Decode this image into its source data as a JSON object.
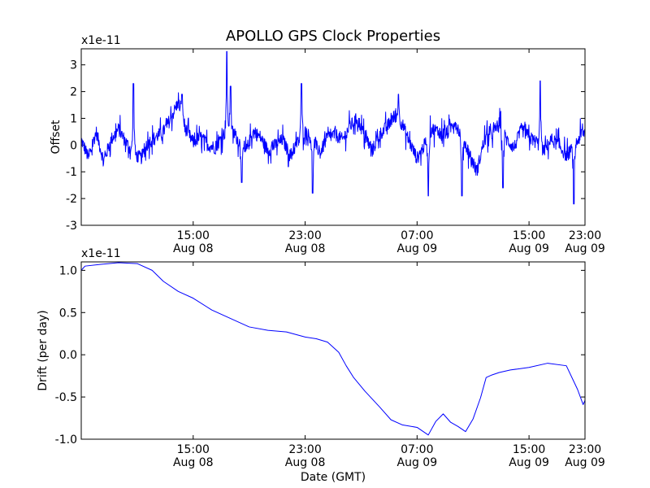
{
  "chart_data": [
    {
      "type": "line",
      "title": "APOLLO GPS Clock Properties",
      "ylabel": "Offset",
      "xlabel": "",
      "scale_label": "x1e-11",
      "x_range_hours": [
        12.0,
        25.5
      ],
      "ylim": [
        -3,
        3.6
      ],
      "yticks": [
        {
          "value": 3,
          "label": "3"
        },
        {
          "value": 2,
          "label": "2"
        },
        {
          "value": 1,
          "label": "1"
        },
        {
          "value": 0,
          "label": "0"
        },
        {
          "value": -1,
          "label": "-1"
        },
        {
          "value": -2,
          "label": "-2"
        },
        {
          "value": -3,
          "label": "-3"
        }
      ],
      "xticks": [
        {
          "hour": 15,
          "time": "15:00",
          "date": "Aug 08"
        },
        {
          "hour": 18,
          "time": "23:00",
          "date": "Aug 08"
        },
        {
          "hour": 21,
          "time": "07:00",
          "date": "Aug 09"
        },
        {
          "hour": 24,
          "time": "15:00",
          "date": "Aug 09"
        },
        {
          "hour": 25.5,
          "time": "23:00",
          "date": "Aug 09"
        }
      ],
      "series": [
        {
          "name": "offset",
          "color": "#0000ff",
          "noise_amplitude": 0.25,
          "x": [
            12.0,
            12.2,
            12.4,
            12.6,
            12.8,
            13.0,
            13.2,
            13.4,
            13.6,
            13.8,
            14.0,
            14.2,
            14.4,
            14.6,
            14.8,
            15.0,
            15.2,
            15.4,
            15.6,
            15.8,
            16.0,
            16.2,
            16.4,
            16.6,
            16.8,
            17.0,
            17.2,
            17.4,
            17.6,
            17.8,
            18.0,
            18.2,
            18.4,
            18.6,
            18.8,
            19.0,
            19.2,
            19.4,
            19.6,
            19.8,
            20.0,
            20.2,
            20.4,
            20.6,
            20.8,
            21.0,
            21.2,
            21.4,
            21.6,
            21.8,
            22.0,
            22.2,
            22.4,
            22.6,
            22.8,
            23.0,
            23.2,
            23.4,
            23.6,
            23.8,
            24.0,
            24.2,
            24.4,
            24.6,
            24.8,
            25.0,
            25.2,
            25.4,
            25.5
          ],
          "y": [
            0.2,
            -0.5,
            0.5,
            -0.6,
            0.2,
            0.6,
            0.1,
            -0.3,
            -0.5,
            0.1,
            0.3,
            0.5,
            1.0,
            1.6,
            0.6,
            0.1,
            0.3,
            0.0,
            -0.1,
            0.4,
            0.6,
            0.2,
            -0.3,
            0.5,
            0.3,
            -0.2,
            0.0,
            0.2,
            -0.4,
            0.1,
            0.5,
            0.2,
            -0.3,
            0.3,
            0.4,
            0.2,
            0.7,
            1.0,
            0.3,
            -0.2,
            0.4,
            0.7,
            1.1,
            0.8,
            0.1,
            -0.5,
            0.0,
            0.6,
            0.5,
            0.4,
            0.9,
            0.3,
            -0.3,
            -1.0,
            0.2,
            0.4,
            0.8,
            0.2,
            -0.1,
            0.6,
            0.3,
            0.1,
            -0.2,
            0.2,
            0.0,
            -0.4,
            -0.1,
            0.4,
            0.5
          ],
          "spikes": [
            {
              "x": 13.4,
              "y": 2.3
            },
            {
              "x": 14.7,
              "y": 1.9
            },
            {
              "x": 15.9,
              "y": 3.5
            },
            {
              "x": 16.0,
              "y": 2.2
            },
            {
              "x": 16.3,
              "y": -1.4
            },
            {
              "x": 17.9,
              "y": 2.3
            },
            {
              "x": 18.2,
              "y": -1.8
            },
            {
              "x": 20.5,
              "y": 1.9
            },
            {
              "x": 21.3,
              "y": -1.9
            },
            {
              "x": 22.2,
              "y": -1.9
            },
            {
              "x": 23.3,
              "y": -1.6
            },
            {
              "x": 24.3,
              "y": 2.4
            },
            {
              "x": 25.2,
              "y": -2.2
            }
          ]
        }
      ]
    },
    {
      "type": "line",
      "title": "",
      "ylabel": "Drift (per day)",
      "xlabel": "Date (GMT)",
      "scale_label": "x1e-11",
      "x_range_hours": [
        12.0,
        25.5
      ],
      "ylim": [
        -1.0,
        1.1
      ],
      "yticks": [
        {
          "value": 1.0,
          "label": "1.0"
        },
        {
          "value": 0.5,
          "label": "0.5"
        },
        {
          "value": 0.0,
          "label": "0.0"
        },
        {
          "value": -0.5,
          "label": "-0.5"
        },
        {
          "value": -1.0,
          "label": "-1.0"
        }
      ],
      "xticks": [
        {
          "hour": 15,
          "time": "15:00",
          "date": "Aug 08"
        },
        {
          "hour": 18,
          "time": "23:00",
          "date": "Aug 08"
        },
        {
          "hour": 21,
          "time": "07:00",
          "date": "Aug 09"
        },
        {
          "hour": 24,
          "time": "15:00",
          "date": "Aug 09"
        },
        {
          "hour": 25.5,
          "time": "23:00",
          "date": "Aug 09"
        }
      ],
      "series": [
        {
          "name": "drift",
          "color": "#0000ff",
          "x": [
            12.0,
            12.1,
            12.5,
            13.0,
            13.5,
            13.9,
            14.2,
            14.6,
            15.0,
            15.5,
            16.0,
            16.5,
            17.0,
            17.5,
            18.0,
            18.3,
            18.6,
            18.9,
            19.1,
            19.3,
            19.6,
            20.0,
            20.3,
            20.6,
            21.0,
            21.3,
            21.5,
            21.7,
            21.9,
            22.1,
            22.3,
            22.5,
            22.7,
            22.85,
            23.0,
            23.2,
            23.5,
            24.0,
            24.5,
            25.0,
            25.3,
            25.45,
            25.5
          ],
          "y": [
            1.0,
            1.05,
            1.07,
            1.09,
            1.08,
            1.0,
            0.87,
            0.75,
            0.67,
            0.53,
            0.43,
            0.33,
            0.29,
            0.27,
            0.21,
            0.19,
            0.15,
            0.03,
            -0.13,
            -0.27,
            -0.43,
            -0.62,
            -0.77,
            -0.83,
            -0.86,
            -0.95,
            -0.79,
            -0.7,
            -0.8,
            -0.85,
            -0.91,
            -0.76,
            -0.51,
            -0.27,
            -0.24,
            -0.21,
            -0.18,
            -0.15,
            -0.1,
            -0.13,
            -0.41,
            -0.59,
            -0.54
          ]
        }
      ]
    }
  ]
}
